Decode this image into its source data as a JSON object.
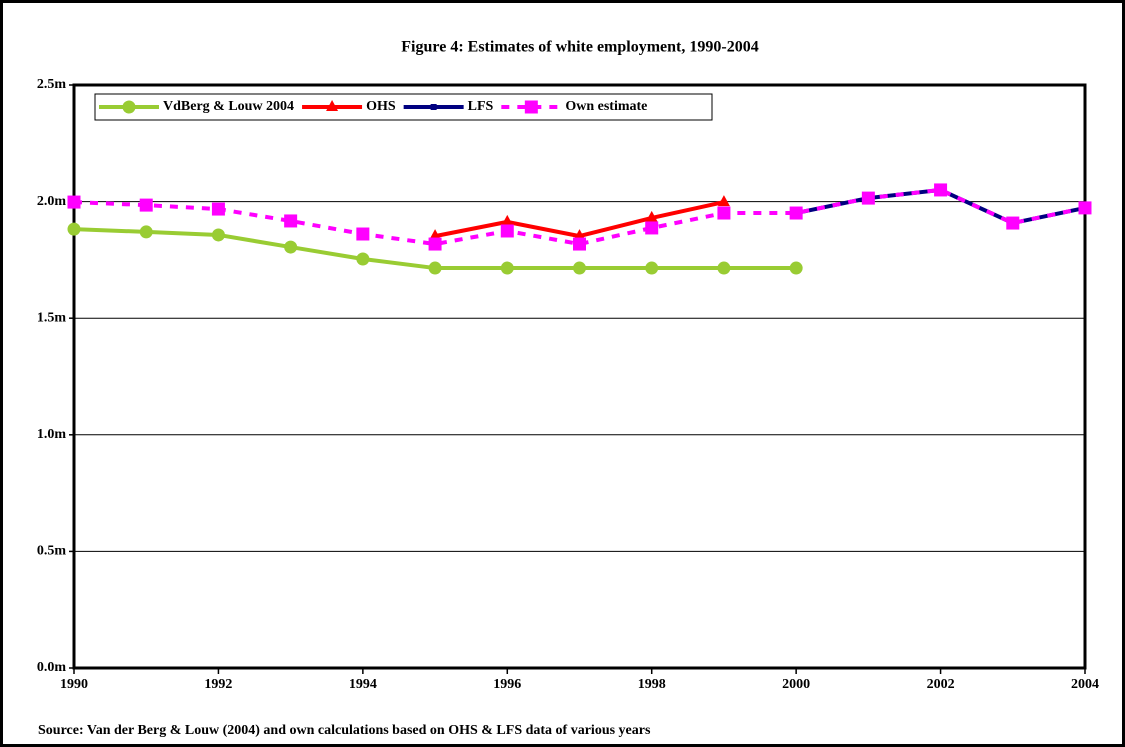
{
  "chart_data": {
    "type": "line",
    "title": "Figure 4: Estimates of white employment, 1990-2004",
    "source": "Source: Van der Berg & Louw (2004) and own calculations based on OHS & LFS data of various years",
    "x": [
      1990,
      1991,
      1992,
      1993,
      1994,
      1995,
      1996,
      1997,
      1998,
      1999,
      2000,
      2001,
      2002,
      2003,
      2004
    ],
    "xlim": [
      1990,
      2004
    ],
    "xticks": [
      1990,
      1992,
      1994,
      1996,
      1998,
      2000,
      2002,
      2004
    ],
    "ylim": [
      0,
      2.5
    ],
    "yticks": [
      {
        "value": 0,
        "label": "0.0m"
      },
      {
        "value": 0.5,
        "label": "0.5m"
      },
      {
        "value": 1,
        "label": "1.0m"
      },
      {
        "value": 1.5,
        "label": "1.5m"
      },
      {
        "value": 2,
        "label": "2.0m"
      },
      {
        "value": 2.5,
        "label": "2.5m"
      }
    ],
    "grid": true,
    "legend": "top-left",
    "series": [
      {
        "name": "VdBerg & Louw 2004",
        "color": "#99cc33",
        "marker": "circle",
        "dashed": false,
        "values": [
          1.882,
          1.87,
          1.857,
          1.805,
          1.754,
          1.715,
          1.715,
          1.715,
          1.715,
          1.715,
          1.715,
          null,
          null,
          null,
          null
        ]
      },
      {
        "name": "OHS",
        "color": "#ff0000",
        "marker": "triangle",
        "dashed": false,
        "values": [
          null,
          null,
          null,
          null,
          null,
          1.852,
          1.913,
          1.852,
          1.93,
          1.998,
          null,
          null,
          null,
          null,
          null
        ]
      },
      {
        "name": "LFS",
        "color": "#000080",
        "marker": "square-small",
        "dashed": false,
        "values": [
          null,
          null,
          null,
          null,
          null,
          null,
          null,
          null,
          null,
          null,
          1.951,
          2.015,
          2.05,
          1.908,
          1.973
        ]
      },
      {
        "name": "Own estimate",
        "color": "#ff00ff",
        "marker": "square",
        "dashed": true,
        "values": [
          1.998,
          1.985,
          1.968,
          1.917,
          1.861,
          1.818,
          1.874,
          1.818,
          1.887,
          1.951,
          1.951,
          2.015,
          2.05,
          1.908,
          1.973
        ]
      }
    ]
  }
}
